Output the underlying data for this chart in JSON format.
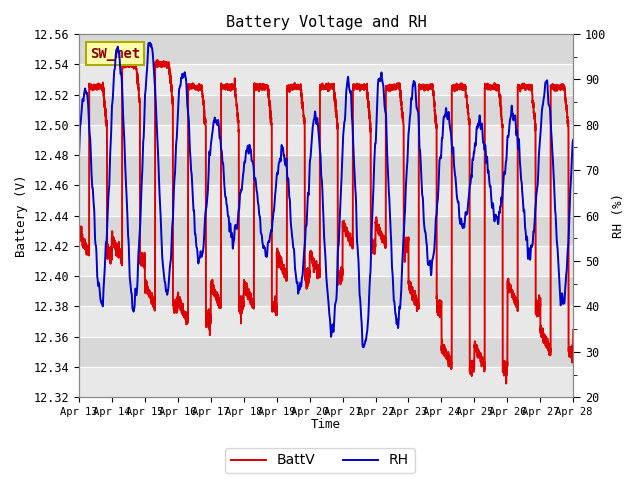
{
  "title": "Battery Voltage and RH",
  "xlabel": "Time",
  "ylabel_left": "Battery (V)",
  "ylabel_right": "RH (%)",
  "ylim_left": [
    12.32,
    12.56
  ],
  "ylim_right": [
    20,
    100
  ],
  "yticks_left": [
    12.32,
    12.34,
    12.36,
    12.38,
    12.4,
    12.42,
    12.44,
    12.46,
    12.48,
    12.5,
    12.52,
    12.54,
    12.56
  ],
  "yticks_right": [
    20,
    30,
    40,
    50,
    60,
    70,
    80,
    90,
    100
  ],
  "xtick_labels": [
    "Apr 13",
    "Apr 14",
    "Apr 15",
    "Apr 16",
    "Apr 17",
    "Apr 18",
    "Apr 19",
    "Apr 20",
    "Apr 21",
    "Apr 22",
    "Apr 23",
    "Apr 24",
    "Apr 25",
    "Apr 26",
    "Apr 27",
    "Apr 28"
  ],
  "color_battv": "#dd0000",
  "color_rh": "#0000cc",
  "label_battv": "BattV",
  "label_rh": "RH",
  "annotation_text": "SW_met",
  "annotation_bg": "#ffffaa",
  "annotation_border": "#aaaa00",
  "fig_bg": "#ffffff",
  "plot_bg": "#e8e8e8",
  "band_light": "#e8e8e8",
  "band_dark": "#d8d8d8",
  "linewidth": 1.4,
  "n_days": 15,
  "seed": 12345
}
